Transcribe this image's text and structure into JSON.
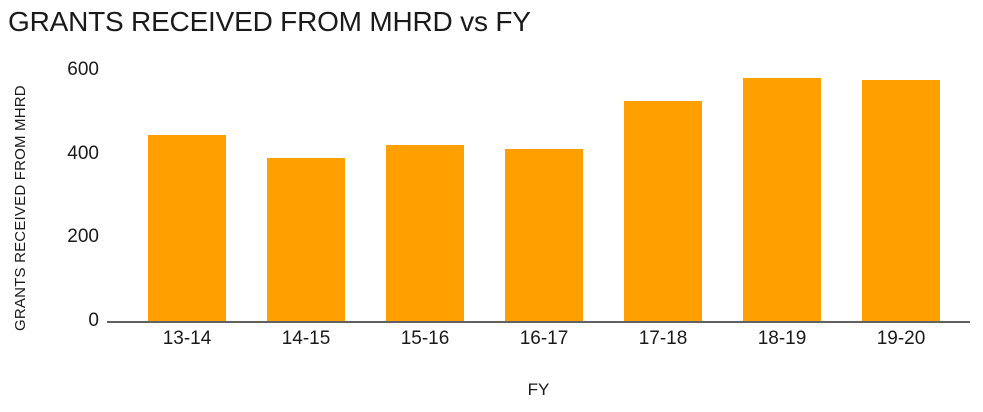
{
  "chart_data": {
    "type": "bar",
    "title": "GRANTS RECEIVED FROM MHRD vs FY",
    "xlabel": "FY",
    "ylabel": "GRANTS RECEIVED FROM MHRD",
    "categories": [
      "13-14",
      "14-15",
      "15-16",
      "16-17",
      "17-18",
      "18-19",
      "19-20"
    ],
    "values": [
      445,
      390,
      420,
      410,
      525,
      580,
      575
    ],
    "yticks": [
      0,
      200,
      400,
      600
    ],
    "ylim": [
      0,
      600
    ],
    "grid": "off",
    "legend": "none",
    "bar_color": "#FFA000",
    "axis_line_color": "#616161",
    "text_color": "#1a1a1a",
    "background_color": "#ffffff"
  }
}
